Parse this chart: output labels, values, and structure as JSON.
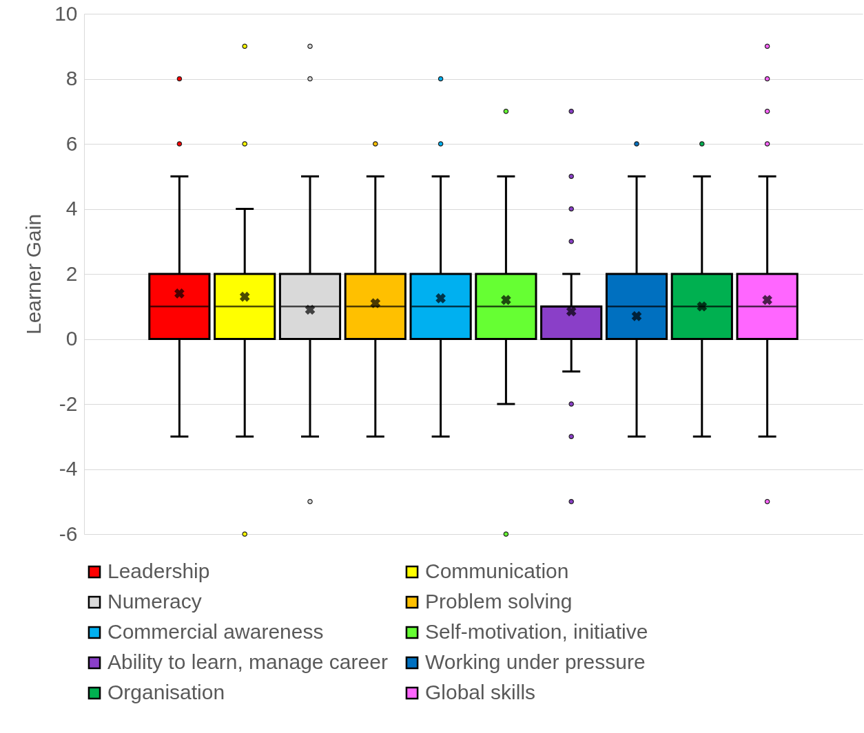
{
  "chart_data": {
    "type": "box",
    "ylabel": "Learner Gain",
    "categories": [
      null
    ],
    "ylim": [
      -6,
      10
    ],
    "yticks": [
      -6,
      -4,
      -2,
      0,
      2,
      4,
      6,
      8,
      10
    ],
    "grid": "y",
    "legend": "bottom",
    "series": [
      {
        "name": "Leadership",
        "color": "#ff0000",
        "boxes": [
          {
            "low": -3,
            "q1": 0,
            "median": 1,
            "q3": 2,
            "high": 5,
            "mean": 1.4,
            "outliers": [
              6,
              8
            ]
          }
        ]
      },
      {
        "name": "Communication",
        "color": "#ffff00",
        "boxes": [
          {
            "low": -3,
            "q1": 0,
            "median": 1,
            "q3": 2,
            "high": 4,
            "mean": 1.3,
            "outliers": [
              6,
              9,
              -6
            ]
          }
        ]
      },
      {
        "name": "Numeracy",
        "color": "#d9d9d9",
        "boxes": [
          {
            "low": -3,
            "q1": 0,
            "median": 1,
            "q3": 2,
            "high": 5,
            "mean": 0.9,
            "outliers": [
              8,
              9,
              -5
            ]
          }
        ]
      },
      {
        "name": "Problem solving",
        "color": "#ffc000",
        "boxes": [
          {
            "low": -3,
            "q1": 0,
            "median": 1,
            "q3": 2,
            "high": 5,
            "mean": 1.1,
            "outliers": [
              6
            ]
          }
        ]
      },
      {
        "name": "Commercial awareness",
        "color": "#00b0f0",
        "boxes": [
          {
            "low": -3,
            "q1": 0,
            "median": 1,
            "q3": 2,
            "high": 5,
            "mean": 1.25,
            "outliers": [
              6,
              8
            ]
          }
        ]
      },
      {
        "name": "Self-motivation, initiative",
        "color": "#66ff33",
        "boxes": [
          {
            "low": -2,
            "q1": 0,
            "median": 1,
            "q3": 2,
            "high": 5,
            "mean": 1.2,
            "outliers": [
              7,
              -6
            ]
          }
        ]
      },
      {
        "name": "Ability to learn, manage career",
        "color": "#8a3fc8",
        "boxes": [
          {
            "low": -1,
            "q1": 0,
            "median": 1,
            "q3": 1,
            "high": 2,
            "mean": 0.85,
            "outliers": [
              3,
              4,
              5,
              7,
              -2,
              -3,
              -5
            ]
          }
        ]
      },
      {
        "name": "Working under pressure",
        "color": "#0070c0",
        "boxes": [
          {
            "low": -3,
            "q1": 0,
            "median": 1,
            "q3": 2,
            "high": 5,
            "mean": 0.7,
            "outliers": [
              6
            ]
          }
        ]
      },
      {
        "name": "Organisation",
        "color": "#00b050",
        "boxes": [
          {
            "low": -3,
            "q1": 0,
            "median": 1,
            "q3": 2,
            "high": 5,
            "mean": 1.0,
            "outliers": [
              6
            ]
          }
        ]
      },
      {
        "name": "Global skills",
        "color": "#ff66ff",
        "boxes": [
          {
            "low": -3,
            "q1": 0,
            "median": 1,
            "q3": 2,
            "high": 5,
            "mean": 1.2,
            "outliers": [
              6,
              7,
              8,
              9,
              -5
            ]
          }
        ]
      }
    ]
  }
}
